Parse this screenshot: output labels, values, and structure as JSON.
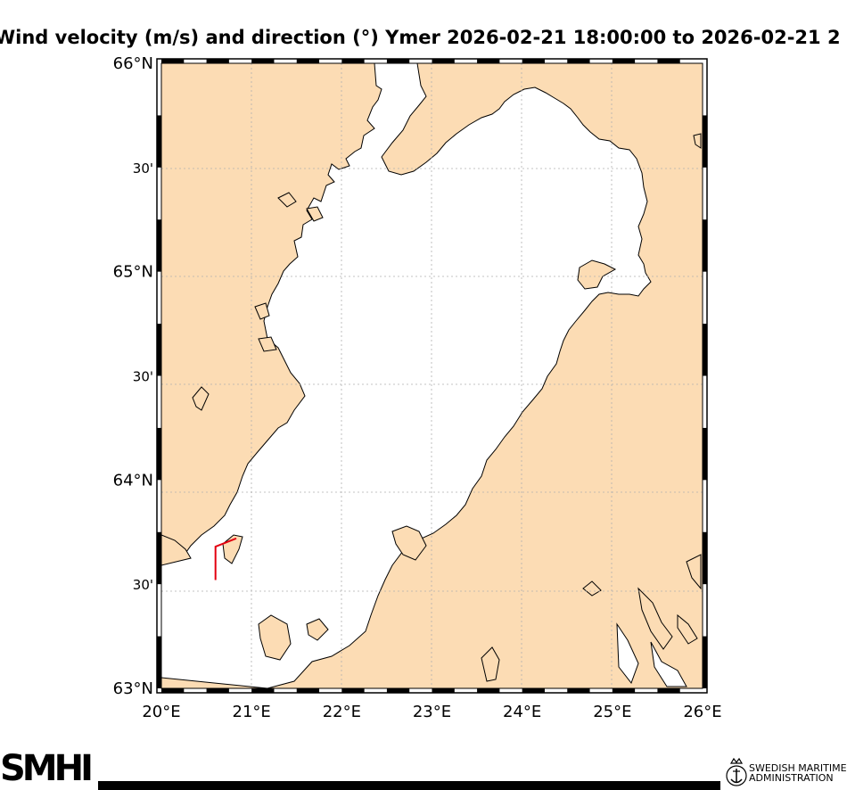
{
  "title": "Wind velocity (m/s) and direction (°) Ymer 2026-02-21 18:00:00  to  2026-02-21 2",
  "map": {
    "lat_ticks": [
      {
        "label": "66°N",
        "lat": 66.0,
        "major": true
      },
      {
        "label": "30'",
        "lat": 65.5,
        "major": false
      },
      {
        "label": "65°N",
        "lat": 65.0,
        "major": true
      },
      {
        "label": "30'",
        "lat": 64.5,
        "major": false
      },
      {
        "label": "64°N",
        "lat": 64.0,
        "major": true
      },
      {
        "label": "30'",
        "lat": 63.5,
        "major": false
      },
      {
        "label": "63°N",
        "lat": 63.0,
        "major": true
      }
    ],
    "lon_ticks": [
      {
        "label": "20°E",
        "lon": 20
      },
      {
        "label": "21°E",
        "lon": 21
      },
      {
        "label": "22°E",
        "lon": 22
      },
      {
        "label": "23°E",
        "lon": 23
      },
      {
        "label": "24°E",
        "lon": 24
      },
      {
        "label": "25°E",
        "lon": 25
      },
      {
        "label": "26°E",
        "lon": 26
      }
    ],
    "extent": {
      "lon_min": 20,
      "lon_max": 26,
      "lat_min": 63,
      "lat_max": 66
    },
    "grid": true,
    "colors": {
      "land": "#fcdcb4",
      "sea": "#ffffff",
      "track": "#e3000f",
      "coast": "#000000"
    },
    "track_lonlat": [
      [
        20.6,
        63.52
      ],
      [
        20.6,
        63.68
      ],
      [
        20.83,
        63.72
      ]
    ]
  },
  "footer": {
    "smhi_logo": "SMHI",
    "agency_line1": "SWEDISH MARITIME",
    "agency_line2": "ADMINISTRATION",
    "agency_icon": "anchor-crown-icon"
  }
}
